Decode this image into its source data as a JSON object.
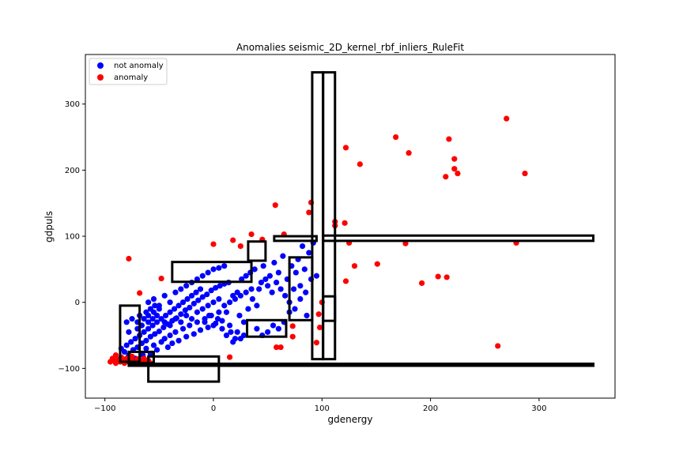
{
  "chart_data": {
    "type": "scatter",
    "title": "Anomalies seismic_2D_kernel_rbf_inliers_RuleFit",
    "xlabel": "gdenergy",
    "ylabel": "gdpuls",
    "xlim": [
      -118,
      370
    ],
    "ylim": [
      -145,
      375
    ],
    "xticks": [
      -100,
      0,
      100,
      200,
      300
    ],
    "yticks": [
      -100,
      0,
      100,
      200,
      300
    ],
    "grid": false,
    "legend_position": "top-left",
    "series": [
      {
        "name": "not anomaly",
        "color": "#0000ff",
        "points": [
          [
            -85,
            -70
          ],
          [
            -82,
            -75
          ],
          [
            -80,
            -65
          ],
          [
            -78,
            -80
          ],
          [
            -76,
            -60
          ],
          [
            -74,
            -72
          ],
          [
            -72,
            -55
          ],
          [
            -70,
            -68
          ],
          [
            -68,
            -50
          ],
          [
            -66,
            -62
          ],
          [
            -64,
            -45
          ],
          [
            -62,
            -58
          ],
          [
            -60,
            -40
          ],
          [
            -58,
            -52
          ],
          [
            -56,
            -35
          ],
          [
            -54,
            -48
          ],
          [
            -52,
            -30
          ],
          [
            -50,
            -44
          ],
          [
            -48,
            -25
          ],
          [
            -46,
            -38
          ],
          [
            -44,
            -20
          ],
          [
            -42,
            -33
          ],
          [
            -40,
            -15
          ],
          [
            -38,
            -28
          ],
          [
            -36,
            -10
          ],
          [
            -34,
            -24
          ],
          [
            -32,
            -5
          ],
          [
            -30,
            -18
          ],
          [
            -28,
            0
          ],
          [
            -26,
            -12
          ],
          [
            -24,
            5
          ],
          [
            -22,
            -8
          ],
          [
            -20,
            10
          ],
          [
            -18,
            -2
          ],
          [
            -16,
            15
          ],
          [
            -14,
            3
          ],
          [
            -12,
            20
          ],
          [
            -10,
            8
          ],
          [
            -8,
            -30
          ],
          [
            -6,
            12
          ],
          [
            -4,
            -20
          ],
          [
            -2,
            18
          ],
          [
            0,
            -35
          ],
          [
            2,
            22
          ],
          [
            4,
            -25
          ],
          [
            6,
            25
          ],
          [
            8,
            -40
          ],
          [
            10,
            28
          ],
          [
            12,
            -15
          ],
          [
            14,
            30
          ],
          [
            16,
            -45
          ],
          [
            18,
            10
          ],
          [
            20,
            -55
          ],
          [
            22,
            15
          ],
          [
            24,
            -20
          ],
          [
            26,
            35
          ],
          [
            28,
            -30
          ],
          [
            30,
            40
          ],
          [
            32,
            -10
          ],
          [
            34,
            45
          ],
          [
            36,
            5
          ],
          [
            38,
            50
          ],
          [
            40,
            -5
          ],
          [
            42,
            20
          ],
          [
            44,
            30
          ],
          [
            46,
            55
          ],
          [
            48,
            35
          ],
          [
            50,
            25
          ],
          [
            52,
            40
          ],
          [
            54,
            15
          ],
          [
            56,
            60
          ],
          [
            58,
            30
          ],
          [
            60,
            45
          ],
          [
            62,
            20
          ],
          [
            64,
            70
          ],
          [
            66,
            10
          ],
          [
            68,
            35
          ],
          [
            70,
            -15
          ],
          [
            72,
            55
          ],
          [
            74,
            20
          ],
          [
            76,
            45
          ],
          [
            78,
            65
          ],
          [
            80,
            25
          ],
          [
            82,
            85
          ],
          [
            84,
            50
          ],
          [
            86,
            -20
          ],
          [
            88,
            75
          ],
          [
            90,
            35
          ],
          [
            92,
            90
          ],
          [
            95,
            40
          ],
          [
            -80,
            -30
          ],
          [
            -78,
            -45
          ],
          [
            -75,
            -25
          ],
          [
            -72,
            -85
          ],
          [
            -70,
            -40
          ],
          [
            -65,
            -80
          ],
          [
            -62,
            -70
          ],
          [
            -58,
            -78
          ],
          [
            -55,
            -65
          ],
          [
            -52,
            -72
          ],
          [
            -48,
            -60
          ],
          [
            -45,
            -55
          ],
          [
            -42,
            -68
          ],
          [
            -40,
            -50
          ],
          [
            -38,
            -62
          ],
          [
            -35,
            -45
          ],
          [
            -32,
            -58
          ],
          [
            -28,
            -40
          ],
          [
            -25,
            -52
          ],
          [
            -22,
            -35
          ],
          [
            -18,
            -48
          ],
          [
            -15,
            -30
          ],
          [
            -12,
            -42
          ],
          [
            -8,
            -25
          ],
          [
            -5,
            -38
          ],
          [
            -2,
            -20
          ],
          [
            2,
            -32
          ],
          [
            5,
            -15
          ],
          [
            8,
            -28
          ],
          [
            12,
            -50
          ],
          [
            15,
            -35
          ],
          [
            18,
            -60
          ],
          [
            22,
            -45
          ],
          [
            25,
            -55
          ],
          [
            28,
            -50
          ],
          [
            -60,
            0
          ],
          [
            -55,
            5
          ],
          [
            -50,
            -5
          ],
          [
            -45,
            10
          ],
          [
            -40,
            0
          ],
          [
            -35,
            15
          ],
          [
            -30,
            20
          ],
          [
            -25,
            25
          ],
          [
            -20,
            30
          ],
          [
            -15,
            35
          ],
          [
            -10,
            40
          ],
          [
            -5,
            45
          ],
          [
            0,
            50
          ],
          [
            5,
            52
          ],
          [
            10,
            55
          ],
          [
            -60,
            -20
          ],
          [
            -55,
            -15
          ],
          [
            -50,
            -10
          ],
          [
            -45,
            -30
          ],
          [
            -40,
            -35
          ],
          [
            -35,
            -25
          ],
          [
            -30,
            -30
          ],
          [
            -25,
            -20
          ],
          [
            -20,
            -25
          ],
          [
            -15,
            -15
          ],
          [
            -10,
            -10
          ],
          [
            -5,
            -5
          ],
          [
            0,
            0
          ],
          [
            5,
            5
          ],
          [
            10,
            -5
          ],
          [
            15,
            0
          ],
          [
            20,
            5
          ],
          [
            25,
            10
          ],
          [
            30,
            15
          ],
          [
            35,
            20
          ],
          [
            -70,
            -30
          ],
          [
            -68,
            -20
          ],
          [
            -66,
            -35
          ],
          [
            -64,
            -25
          ],
          [
            -62,
            -15
          ],
          [
            -60,
            -30
          ],
          [
            -58,
            -10
          ],
          [
            -56,
            -25
          ],
          [
            -54,
            -5
          ],
          [
            -52,
            -20
          ],
          [
            40,
            -40
          ],
          [
            45,
            -50
          ],
          [
            50,
            -45
          ],
          [
            55,
            -35
          ],
          [
            60,
            -40
          ],
          [
            65,
            -30
          ],
          [
            70,
            0
          ],
          [
            75,
            -10
          ],
          [
            80,
            5
          ],
          [
            85,
            15
          ]
        ]
      },
      {
        "name": "anomaly",
        "color": "#ff0000",
        "points": [
          [
            -95,
            -90
          ],
          [
            -93,
            -85
          ],
          [
            -92,
            -88
          ],
          [
            -90,
            -92
          ],
          [
            -90,
            -80
          ],
          [
            -88,
            -87
          ],
          [
            -86,
            -90
          ],
          [
            -85,
            -83
          ],
          [
            -84,
            -88
          ],
          [
            -82,
            -92
          ],
          [
            -80,
            -85
          ],
          [
            -78,
            -90
          ],
          [
            -76,
            -87
          ],
          [
            -75,
            -82
          ],
          [
            -72,
            -90
          ],
          [
            -70,
            -86
          ],
          [
            -68,
            -92
          ],
          [
            -66,
            -88
          ],
          [
            -64,
            -85
          ],
          [
            -62,
            -90
          ],
          [
            -60,
            -88
          ],
          [
            -58,
            -92
          ],
          [
            -78,
            66
          ],
          [
            -68,
            14
          ],
          [
            -48,
            36
          ],
          [
            0,
            88
          ],
          [
            18,
            94
          ],
          [
            25,
            85
          ],
          [
            35,
            103
          ],
          [
            45,
            95
          ],
          [
            65,
            103
          ],
          [
            57,
            147
          ],
          [
            88,
            136
          ],
          [
            90,
            151
          ],
          [
            112,
            122
          ],
          [
            112,
            116
          ],
          [
            121,
            120
          ],
          [
            122,
            234
          ],
          [
            135,
            209
          ],
          [
            168,
            250
          ],
          [
            180,
            226
          ],
          [
            217,
            247
          ],
          [
            222,
            217
          ],
          [
            222,
            202
          ],
          [
            214,
            190
          ],
          [
            225,
            195
          ],
          [
            270,
            278
          ],
          [
            287,
            195
          ],
          [
            279,
            90
          ],
          [
            177,
            89
          ],
          [
            125,
            90
          ],
          [
            130,
            55
          ],
          [
            151,
            58
          ],
          [
            192,
            29
          ],
          [
            207,
            39
          ],
          [
            215,
            38
          ],
          [
            122,
            32
          ],
          [
            100,
            0
          ],
          [
            97,
            -18
          ],
          [
            98,
            -38
          ],
          [
            95,
            -61
          ],
          [
            73,
            -36
          ],
          [
            73,
            -52
          ],
          [
            58,
            -68
          ],
          [
            62,
            -68
          ],
          [
            15,
            -83
          ],
          [
            262,
            -66
          ]
        ]
      }
    ],
    "rectangles": [
      [
        -86,
        -90,
        -68,
        -5
      ],
      [
        -78,
        -92,
        -55,
        -75
      ],
      [
        -60,
        -120,
        5,
        -82
      ],
      [
        -38,
        31,
        35,
        61
      ],
      [
        32,
        63,
        48,
        92
      ],
      [
        31,
        -52,
        67,
        -27
      ],
      [
        56,
        93,
        95,
        100
      ],
      [
        70,
        -27,
        91,
        68
      ],
      [
        91,
        -86,
        101,
        348
      ],
      [
        101,
        -86,
        112,
        348
      ],
      [
        101,
        -28,
        112,
        9
      ],
      [
        101,
        93,
        350,
        101
      ],
      [
        -78,
        -96,
        350,
        -93
      ]
    ]
  }
}
